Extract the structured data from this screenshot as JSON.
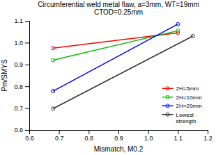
{
  "chart_data": {
    "type": "line",
    "title": "Circumferential weld metal flaw, a=3mm, WT=19mm\nCTOD=0.25mm",
    "x_label": "Mismatch, M0.2",
    "y_label": "Pm/SMYS",
    "xlim": [
      0.6,
      1.2
    ],
    "ylim": [
      0.6,
      1.1
    ],
    "xticks": [
      0.6,
      0.7,
      0.8,
      0.9,
      {
        "value": 1.0,
        "label": "1.0"
      },
      1.1,
      1.2
    ],
    "yticks": [
      0.6,
      0.7,
      0.8,
      0.9,
      {
        "value": 1.0,
        "label": "1.0"
      },
      1.1
    ],
    "grid": false,
    "legend": "lower right",
    "marker": "circle",
    "series": [
      {
        "name": "2H=5mm",
        "color": "#ff0000",
        "x": [
          0.68,
          1.1
        ],
        "values": [
          0.975,
          1.045
        ]
      },
      {
        "name": "2H=10mm",
        "color": "#00bb00",
        "x": [
          0.68,
          1.1
        ],
        "values": [
          0.92,
          1.055
        ]
      },
      {
        "name": "2H=20mm",
        "color": "#0000ff",
        "x": [
          0.68,
          1.1
        ],
        "values": [
          0.778,
          1.085
        ]
      },
      {
        "name": "Lowest\nstrength",
        "color": "#333333",
        "x": [
          0.68,
          1.15
        ],
        "values": [
          0.698,
          1.03
        ]
      }
    ]
  }
}
